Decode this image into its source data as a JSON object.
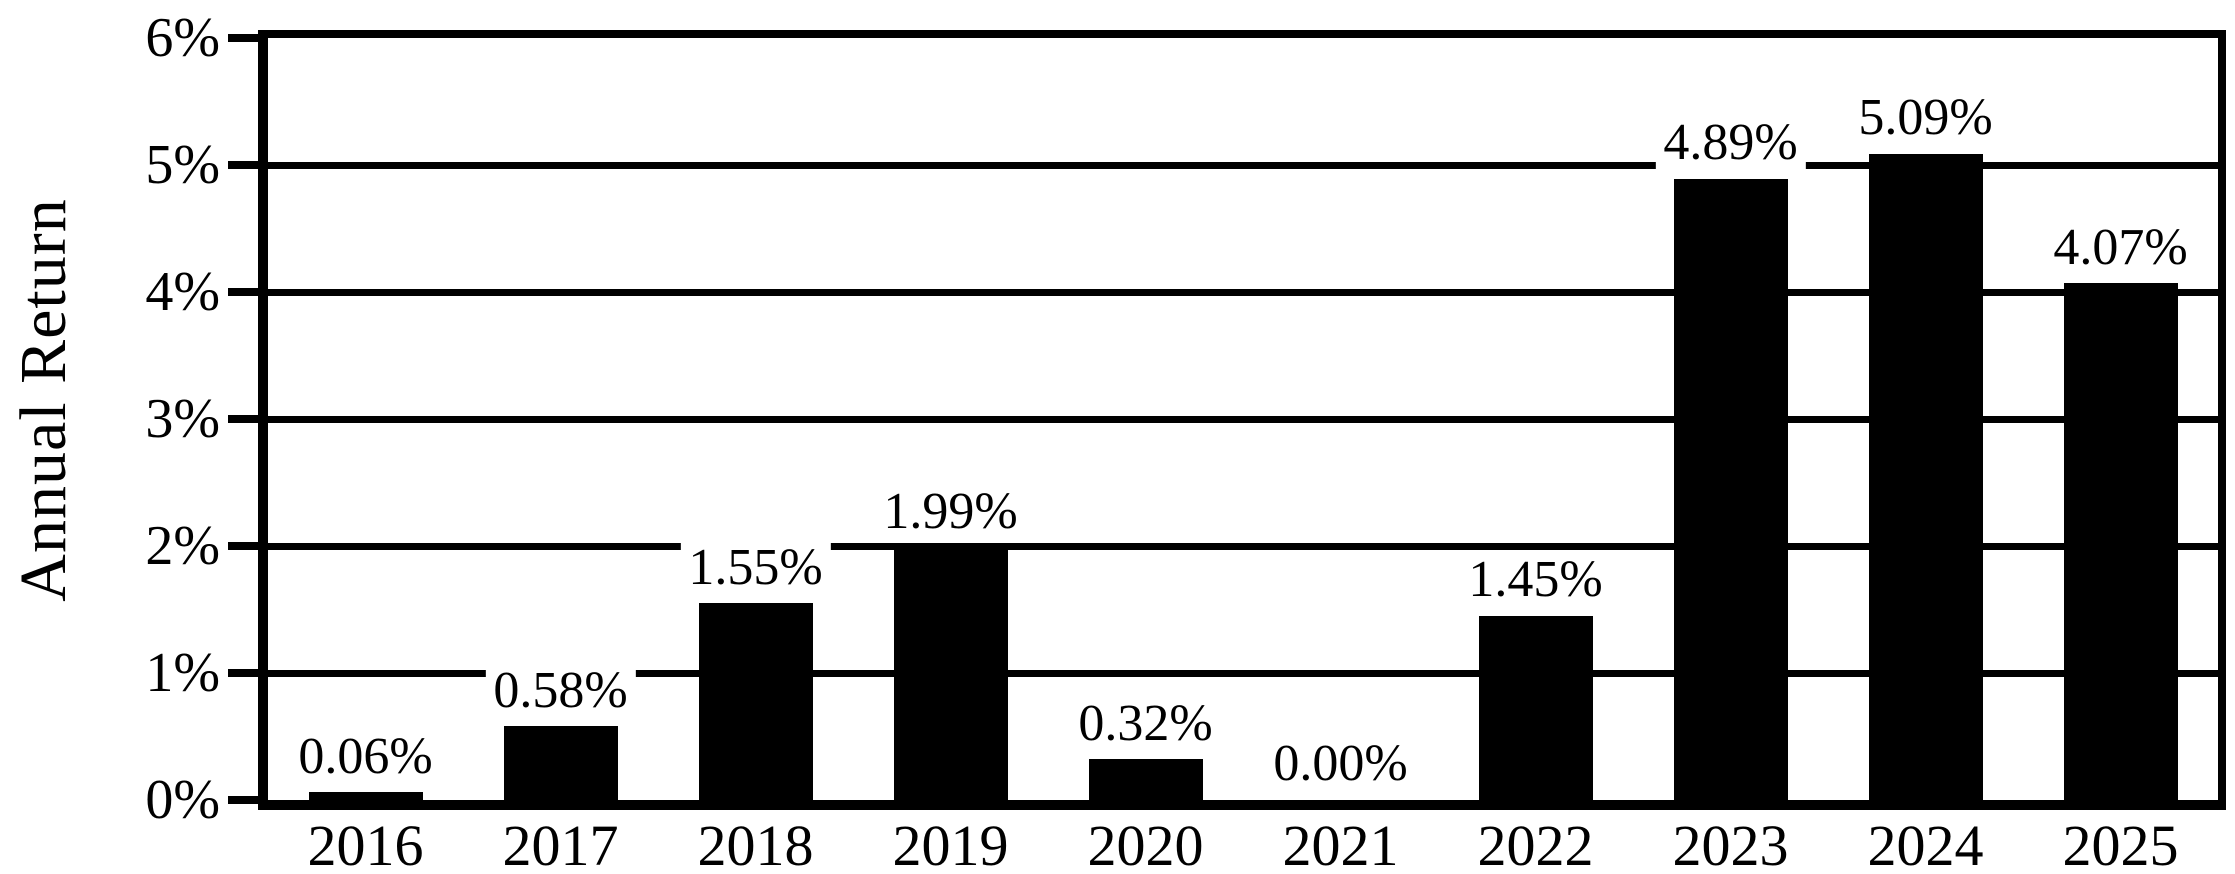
{
  "chart_data": {
    "type": "bar",
    "title": "",
    "xlabel": "",
    "ylabel": "Annual Return",
    "categories": [
      "2016",
      "2017",
      "2018",
      "2019",
      "2020",
      "2021",
      "2022",
      "2023",
      "2024",
      "2025"
    ],
    "values": [
      0.06,
      0.58,
      1.55,
      1.99,
      0.32,
      0.0,
      1.45,
      4.89,
      5.09,
      4.07
    ],
    "value_labels": [
      "0.06%",
      "0.58%",
      "1.55%",
      "1.99%",
      "0.32%",
      "0.00%",
      "1.45%",
      "4.89%",
      "5.09%",
      "4.07%"
    ],
    "y_ticks": [
      "0%",
      "1%",
      "2%",
      "3%",
      "4%",
      "5%",
      "6%"
    ],
    "y_tick_values": [
      0,
      1,
      2,
      3,
      4,
      5,
      6
    ],
    "ylim": [
      0,
      6
    ],
    "grid": true,
    "legend": "none",
    "bar_color": "#000000",
    "background_color": "#ffffff",
    "axis_color": "#000000"
  }
}
